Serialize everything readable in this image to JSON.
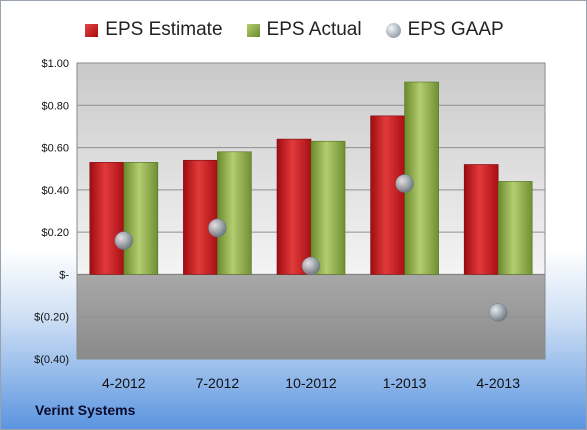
{
  "chart_data": {
    "type": "bar",
    "categories": [
      "4-2012",
      "7-2012",
      "10-2012",
      "1-2013",
      "4-2013"
    ],
    "series": [
      {
        "name": "EPS Estimate",
        "type": "bar",
        "values": [
          0.53,
          0.54,
          0.64,
          0.75,
          0.52
        ]
      },
      {
        "name": "EPS Actual",
        "type": "bar",
        "values": [
          0.53,
          0.58,
          0.63,
          0.91,
          0.44
        ]
      },
      {
        "name": "EPS GAAP",
        "type": "scatter",
        "values": [
          0.16,
          0.22,
          0.04,
          0.43,
          -0.18
        ]
      }
    ],
    "ylim": [
      -0.4,
      1.0
    ],
    "y_ticks": [
      {
        "value": 1.0,
        "label": "$1.00"
      },
      {
        "value": 0.8,
        "label": "$0.80"
      },
      {
        "value": 0.6,
        "label": "$0.60"
      },
      {
        "value": 0.4,
        "label": "$0.40"
      },
      {
        "value": 0.2,
        "label": "$0.20"
      },
      {
        "value": 0.0,
        "label": "$-"
      },
      {
        "value": -0.2,
        "label": "$(0.20)"
      },
      {
        "value": -0.4,
        "label": "$(0.40)"
      }
    ],
    "grid": true,
    "legend_position": "top",
    "colors": {
      "estimate": "#c8161d",
      "actual": "#8fae4a",
      "gaap": "#a9b2bb"
    }
  },
  "legend": {
    "estimate_label": "EPS Estimate",
    "actual_label": "EPS Actual",
    "gaap_label": "EPS GAAP"
  },
  "footer": {
    "company": "Verint Systems"
  }
}
